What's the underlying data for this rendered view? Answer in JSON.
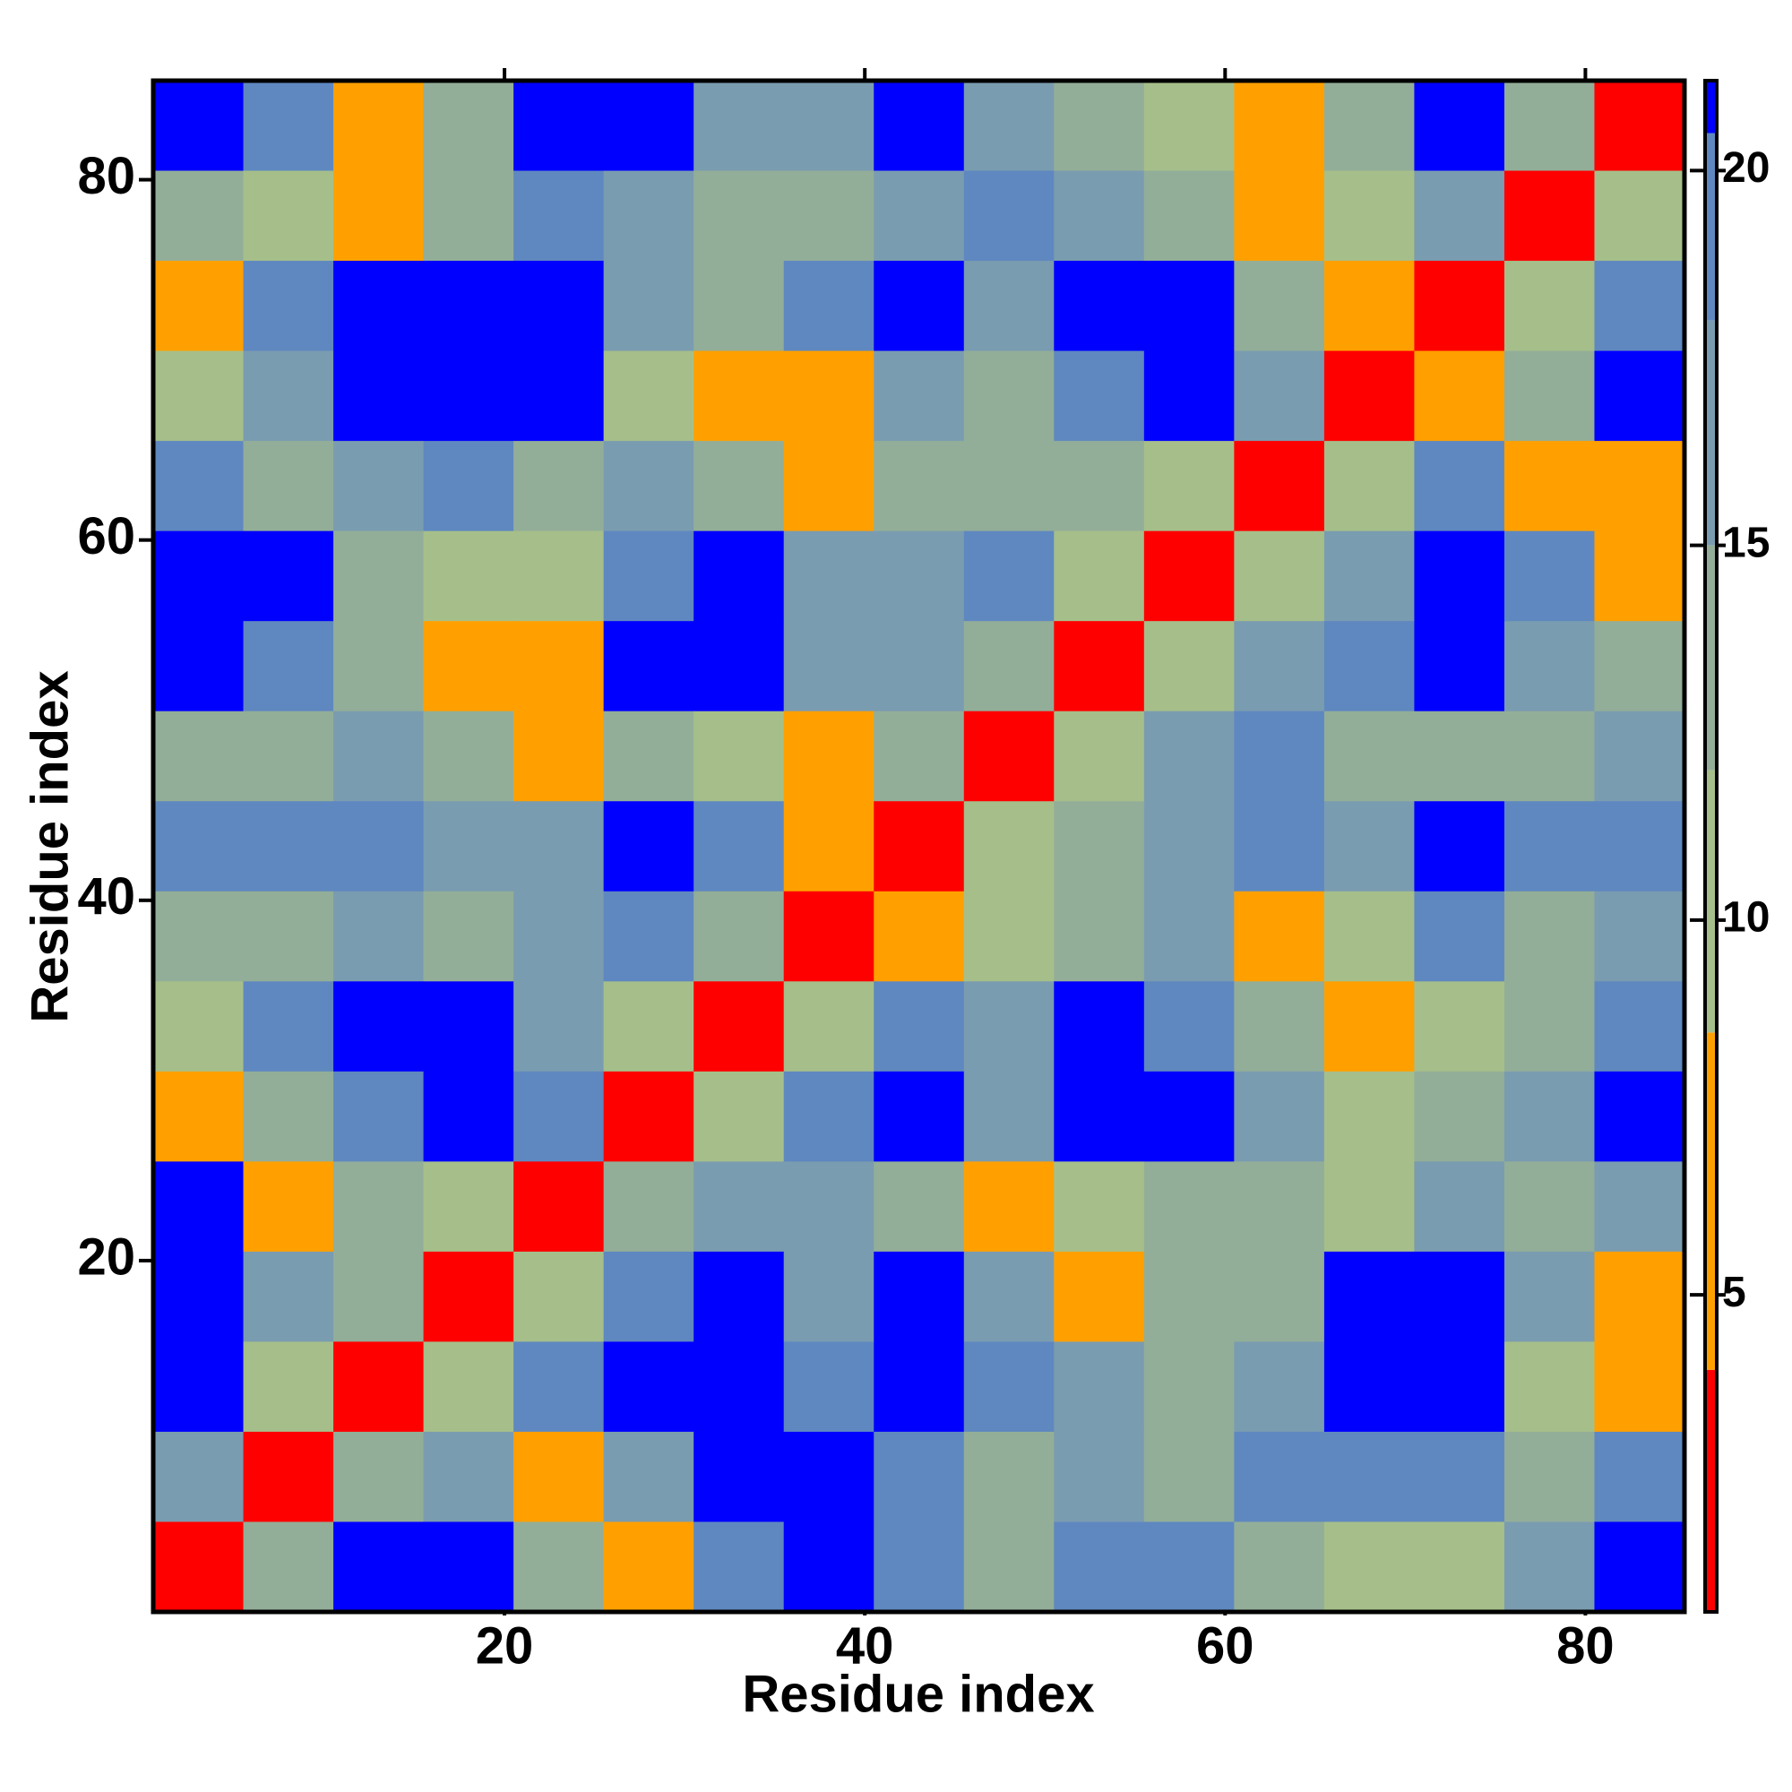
{
  "chart_data": {
    "type": "heatmap",
    "x_label": "Residue index",
    "y_label": "Residue index",
    "x": [
      3,
      8,
      13,
      18,
      23,
      28,
      33,
      38,
      43,
      48,
      53,
      58,
      63,
      68,
      73,
      78,
      83
    ],
    "y": [
      83,
      78,
      73,
      68,
      63,
      58,
      53,
      48,
      43,
      38,
      33,
      28,
      23,
      18,
      13,
      8,
      3
    ],
    "z": [
      [
        22,
        20,
        7,
        12,
        21,
        22,
        15,
        16,
        21,
        17,
        13,
        9,
        7,
        14,
        21,
        14,
        2
      ],
      [
        12,
        10,
        8,
        13,
        20,
        17,
        14,
        13,
        15,
        20,
        16,
        13,
        7,
        9,
        15,
        2,
        10
      ],
      [
        8,
        18,
        22,
        22,
        21,
        15,
        12,
        19,
        21,
        17,
        22,
        22,
        14,
        7,
        2,
        9,
        20
      ],
      [
        11,
        17,
        22,
        22,
        22,
        11,
        7,
        8,
        15,
        13,
        20,
        22,
        16,
        2,
        7,
        12,
        22
      ],
      [
        18,
        14,
        16,
        18,
        14,
        16,
        13,
        7,
        12,
        14,
        12,
        9,
        2,
        9,
        18,
        8,
        7
      ],
      [
        22,
        21,
        14,
        11,
        10,
        20,
        22,
        16,
        15,
        19,
        10,
        2,
        9,
        17,
        22,
        20,
        8
      ],
      [
        22,
        20,
        13,
        6,
        8,
        21,
        21,
        15,
        16,
        12,
        2,
        9,
        15,
        18,
        21,
        16,
        13
      ],
      [
        14,
        12,
        17,
        14,
        6,
        13,
        11,
        8,
        13,
        2,
        11,
        17,
        19,
        13,
        14,
        13,
        16
      ],
      [
        20,
        18,
        20,
        15,
        16,
        21,
        20,
        7,
        2,
        10,
        14,
        16,
        18,
        16,
        21,
        20,
        20
      ],
      [
        13,
        14,
        15,
        12,
        15,
        18,
        12,
        2,
        6,
        9,
        12,
        15,
        7,
        11,
        19,
        14,
        17
      ],
      [
        10,
        20,
        22,
        22,
        15,
        10,
        2,
        11,
        18,
        15,
        21,
        20,
        12,
        7,
        11,
        13,
        20
      ],
      [
        7,
        12,
        20,
        22,
        18,
        2,
        10,
        19,
        21,
        15,
        21,
        21,
        15,
        9,
        14,
        16,
        22
      ],
      [
        21,
        8,
        13,
        11,
        2,
        12,
        16,
        15,
        14,
        7,
        9,
        14,
        12,
        11,
        15,
        14,
        16
      ],
      [
        22,
        15,
        12,
        2,
        11,
        20,
        22,
        17,
        21,
        15,
        7,
        13,
        14,
        21,
        22,
        15,
        8
      ],
      [
        21,
        11,
        2,
        9,
        18,
        22,
        22,
        20,
        22,
        18,
        16,
        12,
        17,
        22,
        22,
        10,
        7
      ],
      [
        15,
        2,
        12,
        15,
        8,
        16,
        21,
        22,
        20,
        12,
        16,
        14,
        18,
        20,
        19,
        13,
        20
      ],
      [
        2,
        12,
        21,
        21,
        14,
        8,
        18,
        21,
        20,
        14,
        20,
        19,
        12,
        9,
        10,
        15,
        21
      ]
    ],
    "xlim": [
      0.5,
      85.5
    ],
    "ylim": [
      0.5,
      85.5
    ],
    "xticks": [
      20,
      40,
      60,
      80
    ],
    "yticks": [
      20,
      40,
      60,
      80
    ],
    "colorscale": [
      {
        "value": 0.77,
        "color": "#ff0000"
      },
      {
        "value": 4,
        "color": "#ffa000"
      },
      {
        "value": 8.5,
        "color": "#a6bf8a"
      },
      {
        "value": 12,
        "color": "#93ae98"
      },
      {
        "value": 15,
        "color": "#7a9cb0"
      },
      {
        "value": 18,
        "color": "#5f88c0"
      },
      {
        "value": 20.5,
        "color": "#0000ff"
      }
    ],
    "colorbar_lim": [
      0.77,
      21.2
    ],
    "colorbar_ticks": [
      5,
      10,
      15,
      20
    ]
  }
}
